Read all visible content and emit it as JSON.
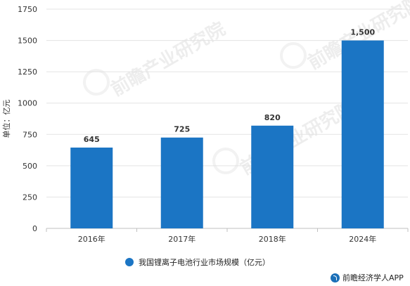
{
  "chart_data": {
    "type": "bar",
    "categories": [
      "2016年",
      "2017年",
      "2018年",
      "2024年"
    ],
    "series": [
      {
        "name": "我国锂离子电池行业市场规模（亿元）",
        "values": [
          645,
          725,
          820,
          1500
        ]
      }
    ],
    "data_labels": [
      "645",
      "725",
      "820",
      "1,500"
    ],
    "ylabel": "单位：亿元",
    "xlabel": "",
    "ylim": [
      0,
      1750
    ],
    "yticks": [
      0,
      250,
      500,
      750,
      1000,
      1250,
      1500,
      1750
    ],
    "grid": true,
    "legend_position": "bottom",
    "colors": {
      "bar": "#1b75c4",
      "grid": "#e3e3e3",
      "axis": "#bfbfbf"
    }
  },
  "legend": {
    "label": "我国锂离子电池行业市场规模（亿元）"
  },
  "brand": {
    "label": "前瞻经济学人APP",
    "icon": "brand-logo-icon"
  },
  "watermark": {
    "text": "前瞻产业研究院"
  }
}
